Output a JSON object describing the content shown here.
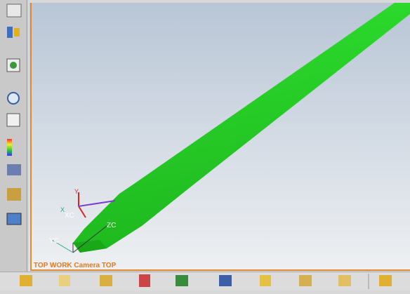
{
  "viewport": {
    "view_label": "TOP WORK Camera TOP"
  },
  "triad": {
    "work_x": "XC",
    "work_y": "YC",
    "work_z": "ZC",
    "abs_x": "X",
    "abs_y": "Y"
  }
}
